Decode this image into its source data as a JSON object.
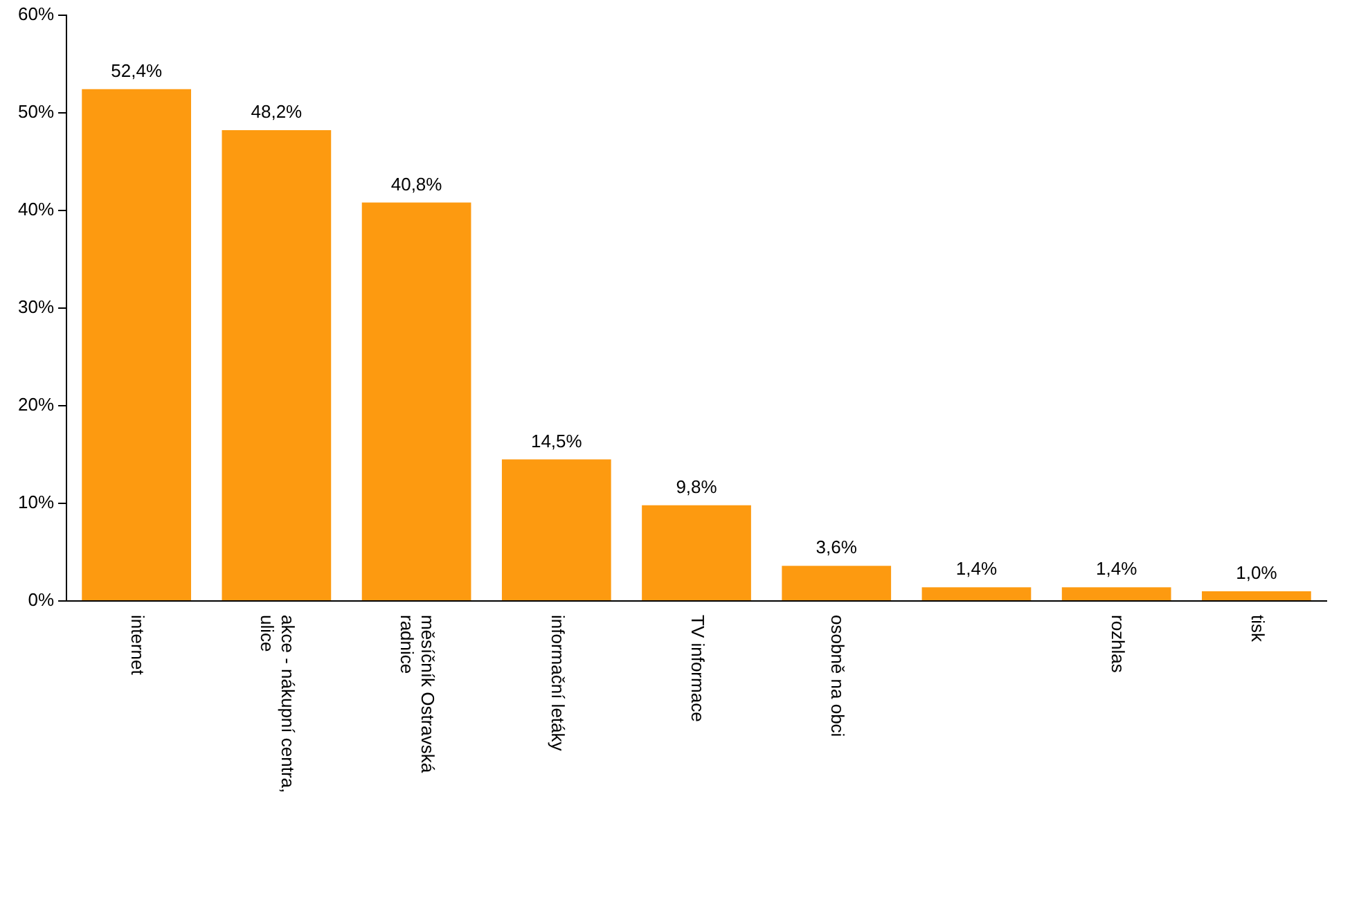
{
  "chart_data": {
    "type": "bar",
    "categories": [
      "internet",
      "akce - nákupní centra, ulice",
      "měsíčník Ostravská radnice",
      "informační letáky",
      "TV informace",
      "osobně na obci",
      null,
      "rozhlas",
      "tisk"
    ],
    "values": [
      52.4,
      48.2,
      40.8,
      14.5,
      9.8,
      3.6,
      1.4,
      1.4,
      1.0
    ],
    "value_labels": [
      "52,4%",
      "48,2%",
      "40,8%",
      "14,5%",
      "9,8%",
      "3,6%",
      "1,4%",
      "1,4%",
      "1,0%"
    ],
    "color": "#fd9a10",
    "ylim": [
      0,
      60
    ],
    "yticks": [
      {
        "value": 0,
        "label": "0%"
      },
      {
        "value": 10,
        "label": "10%"
      },
      {
        "value": 20,
        "label": "20%"
      },
      {
        "value": 30,
        "label": "30%"
      },
      {
        "value": 40,
        "label": "40%"
      },
      {
        "value": 50,
        "label": "50%"
      },
      {
        "value": 60,
        "label": "60%"
      }
    ],
    "grid": false,
    "legend": false
  }
}
